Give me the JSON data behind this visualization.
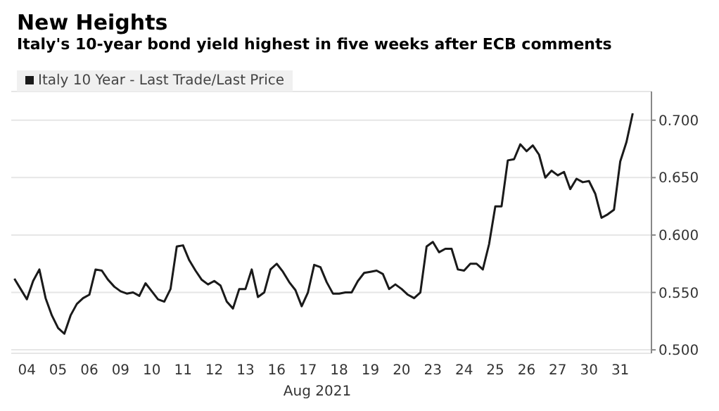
{
  "chart_data": {
    "type": "line",
    "title": "New Heights",
    "subtitle": "Italy's 10-year bond yield highest in five weeks after ECB comments",
    "xlabel": "Aug 2021",
    "categories": [
      null,
      null,
      "04",
      null,
      null,
      null,
      null,
      "05",
      null,
      null,
      null,
      null,
      "06",
      null,
      null,
      null,
      null,
      "09",
      null,
      null,
      null,
      null,
      "10",
      null,
      null,
      null,
      null,
      "11",
      null,
      null,
      null,
      null,
      "12",
      null,
      null,
      null,
      null,
      "13",
      null,
      null,
      null,
      null,
      "16",
      null,
      null,
      null,
      null,
      "17",
      null,
      null,
      null,
      null,
      "18",
      null,
      null,
      null,
      null,
      "19",
      null,
      null,
      null,
      null,
      "20",
      null,
      null,
      null,
      null,
      "23",
      null,
      null,
      null,
      null,
      "24",
      null,
      null,
      null,
      null,
      "25",
      null,
      null,
      null,
      null,
      "26",
      null,
      null,
      null,
      null,
      "27",
      null,
      null,
      null,
      null,
      "30",
      null,
      null,
      null,
      null,
      "31",
      null,
      null
    ],
    "series": [
      {
        "name": "Italy 10 Year - Last Trade/Last Price",
        "color": "#1a1a1a",
        "values": [
          0.562,
          0.553,
          0.544,
          0.56,
          0.57,
          0.545,
          0.53,
          0.519,
          0.514,
          0.53,
          0.54,
          0.545,
          0.548,
          0.57,
          0.569,
          0.561,
          0.555,
          0.551,
          0.549,
          0.55,
          0.547,
          0.558,
          0.551,
          0.544,
          0.542,
          0.553,
          0.59,
          0.591,
          0.578,
          0.569,
          0.561,
          0.557,
          0.56,
          0.556,
          0.542,
          0.536,
          0.553,
          0.553,
          0.57,
          0.546,
          0.55,
          0.57,
          0.575,
          0.568,
          0.559,
          0.552,
          0.538,
          0.55,
          0.574,
          0.572,
          0.559,
          0.549,
          0.549,
          0.55,
          0.55,
          0.56,
          0.567,
          0.568,
          0.569,
          0.566,
          0.553,
          0.557,
          0.553,
          0.548,
          0.545,
          0.55,
          0.59,
          0.594,
          0.585,
          0.588,
          0.588,
          0.57,
          0.569,
          0.575,
          0.575,
          0.57,
          0.592,
          0.625,
          0.625,
          0.665,
          0.666,
          0.679,
          0.673,
          0.678,
          0.67,
          0.65,
          0.656,
          0.652,
          0.655,
          0.64,
          0.649,
          0.646,
          0.647,
          0.636,
          0.615,
          0.618,
          0.622,
          0.664,
          0.681,
          0.706
        ]
      }
    ],
    "ylim": [
      0.497,
      0.725
    ],
    "yticks": [
      {
        "value": 0.5,
        "label": "0.500"
      },
      {
        "value": 0.55,
        "label": "0.550"
      },
      {
        "value": 0.6,
        "label": "0.600"
      },
      {
        "value": 0.65,
        "label": "0.650"
      },
      {
        "value": 0.7,
        "label": "0.700"
      }
    ],
    "grid": "y",
    "legend": "top left",
    "marker": "none",
    "line_style": "solid"
  }
}
